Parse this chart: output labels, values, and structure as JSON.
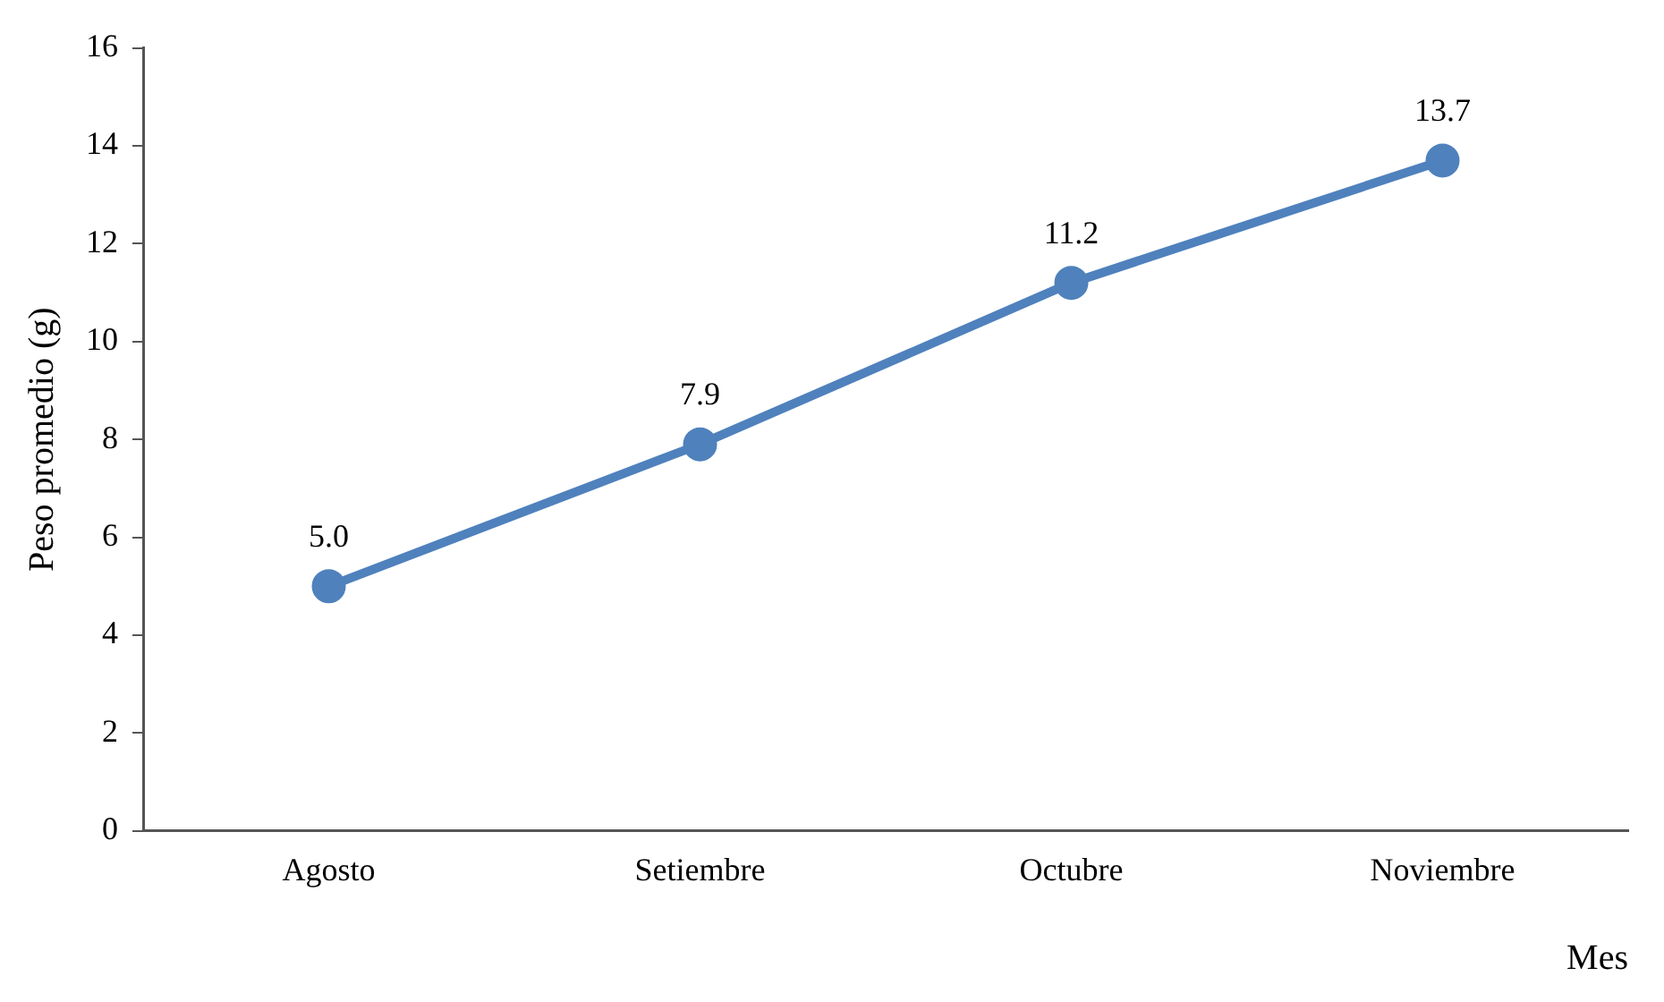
{
  "chart_data": {
    "type": "line",
    "xlabel": "Mes",
    "ylabel": "Peso promedio (g)",
    "categories": [
      "Agosto",
      "Setiembre",
      "Octubre",
      "Noviembre"
    ],
    "series": [
      {
        "color": "#4f81bd",
        "values": [
          5.0,
          7.9,
          11.2,
          13.7
        ],
        "value_labels": [
          "5.0",
          "7.9",
          "11.2",
          "13.7"
        ]
      }
    ],
    "ylim": [
      0,
      16
    ],
    "yticks": [
      0,
      2,
      4,
      6,
      8,
      10,
      12,
      14,
      16
    ],
    "grid": false,
    "legend": false,
    "marker": "circle"
  }
}
